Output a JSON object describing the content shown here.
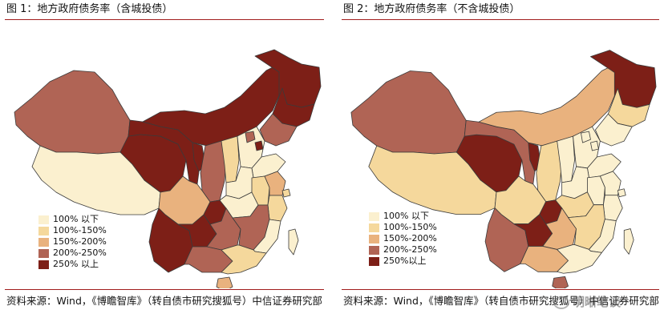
{
  "figure_left": {
    "title": "图 1：地方政府债务率（含城投债）",
    "legend": [
      {
        "label": "100% 以下",
        "color": "#fbf0cf"
      },
      {
        "label": "100%-150%",
        "color": "#f5d89c"
      },
      {
        "label": "150%-200%",
        "color": "#e9b27e"
      },
      {
        "label": "200%-250%",
        "color": "#b06455"
      },
      {
        "label": "250% 以上",
        "color": "#7d1f17"
      }
    ],
    "source": "资料来源：Wind，《博瞻智库》（转自债市研究搜狐号）中信证券研究部"
  },
  "figure_right": {
    "title": "图 2：地方政府债务率（不含城投债）",
    "legend": [
      {
        "label": "100% 以下",
        "color": "#fbf0cf"
      },
      {
        "label": "100%-150%",
        "color": "#f5d89c"
      },
      {
        "label": "150%-200%",
        "color": "#e9b27e"
      },
      {
        "label": "200%-250%",
        "color": "#b06455"
      },
      {
        "label": "250%以上",
        "color": "#7d1f17"
      }
    ],
    "source": "资料来源：Wind，《博瞻智库》（转自债市研究搜狐号）中信证券研究部"
  },
  "watermark": "明晰笔谈",
  "map_left": {
    "xinjiang": "#b06455",
    "tibet": "#fbf0cf",
    "qinghai": "#7d1f17",
    "gansu": "#7d1f17",
    "inner_mongolia": "#7d1f17",
    "heilongjiang": "#7d1f17",
    "jilin": "#7d1f17",
    "liaoning": "#b06455",
    "ningxia": "#7d1f17",
    "shaanxi": "#b06455",
    "shanxi": "#f5d89c",
    "hebei": "#fbf0cf",
    "beijing": "#b06455",
    "tianjin": "#7d1f17",
    "shandong": "#fbf0cf",
    "henan": "#fbf0cf",
    "sichuan": "#e9b27e",
    "chongqing": "#7d1f17",
    "hubei": "#fbf0cf",
    "anhui": "#f5d89c",
    "jiangsu": "#e9b27e",
    "zhejiang": "#f5d89c",
    "shanghai": "#f5d89c",
    "yunnan": "#7d1f17",
    "guizhou": "#7d1f17",
    "hunan": "#b06455",
    "jiangxi": "#b06455",
    "fujian": "#fbf0cf",
    "guangxi": "#b06455",
    "guangdong": "#f5d89c",
    "hainan": "#e9b27e",
    "taiwan": "#fbf0cf"
  },
  "map_right": {
    "xinjiang": "#b06455",
    "tibet": "#f5d89c",
    "qinghai": "#7d1f17",
    "gansu": "#b06455",
    "inner_mongolia": "#e9b27e",
    "heilongjiang": "#7d1f17",
    "jilin": "#f5d89c",
    "liaoning": "#fbf0cf",
    "ningxia": "#7d1f17",
    "shaanxi": "#f5d89c",
    "shanxi": "#fbf0cf",
    "hebei": "#fbf0cf",
    "beijing": "#fbf0cf",
    "tianjin": "#fbf0cf",
    "shandong": "#fbf0cf",
    "henan": "#fbf0cf",
    "sichuan": "#f5d89c",
    "chongqing": "#7d1f17",
    "hubei": "#f5d89c",
    "anhui": "#fbf0cf",
    "jiangsu": "#fbf0cf",
    "zhejiang": "#fbf0cf",
    "shanghai": "#fbf0cf",
    "yunnan": "#b06455",
    "guizhou": "#7d1f17",
    "hunan": "#e9b27e",
    "jiangxi": "#f5d89c",
    "fujian": "#fbf0cf",
    "guangxi": "#e9b27e",
    "guangdong": "#fbf0cf",
    "hainan": "#b06455",
    "taiwan": "#fbf0cf"
  }
}
